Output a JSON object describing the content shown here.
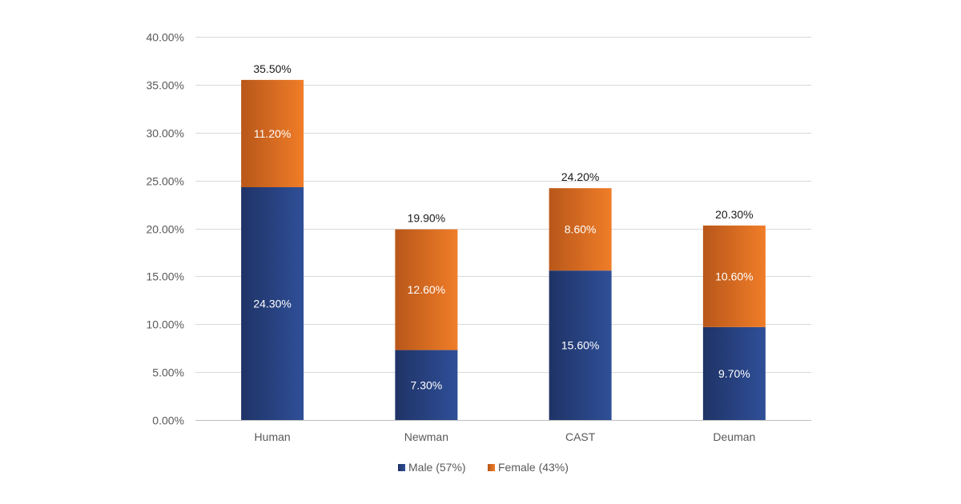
{
  "chart_data": {
    "type": "bar",
    "stacked": true,
    "categories": [
      "Human",
      "Newman",
      "CAST",
      "Deuman"
    ],
    "series": [
      {
        "name": "Male (57%)",
        "values": [
          24.3,
          7.3,
          15.6,
          9.7
        ],
        "labels": [
          "24.30%",
          "7.30%",
          "15.60%",
          "9.70%"
        ],
        "color": "#2f4b8f"
      },
      {
        "name": "Female (43%)",
        "values": [
          11.2,
          12.6,
          8.6,
          10.6
        ],
        "labels": [
          "11.20%",
          "12.60%",
          "8.60%",
          "10.60%"
        ],
        "color": "#e46f1f"
      }
    ],
    "totals": [
      35.5,
      19.9,
      24.2,
      20.3
    ],
    "total_labels": [
      "35.50%",
      "19.90%",
      "24.20%",
      "20.30%"
    ],
    "y_ticks": [
      "0.00%",
      "5.00%",
      "10.00%",
      "15.00%",
      "20.00%",
      "25.00%",
      "30.00%",
      "35.00%",
      "40.00%"
    ],
    "ylim": [
      0,
      40
    ],
    "grid": true,
    "legend_position": "bottom",
    "colors": {
      "male_dark": "#1f3366",
      "male_light": "#2f4f98",
      "female_dark": "#b8571a",
      "female_light": "#f07d28",
      "grid": "#d9d9d9"
    }
  }
}
